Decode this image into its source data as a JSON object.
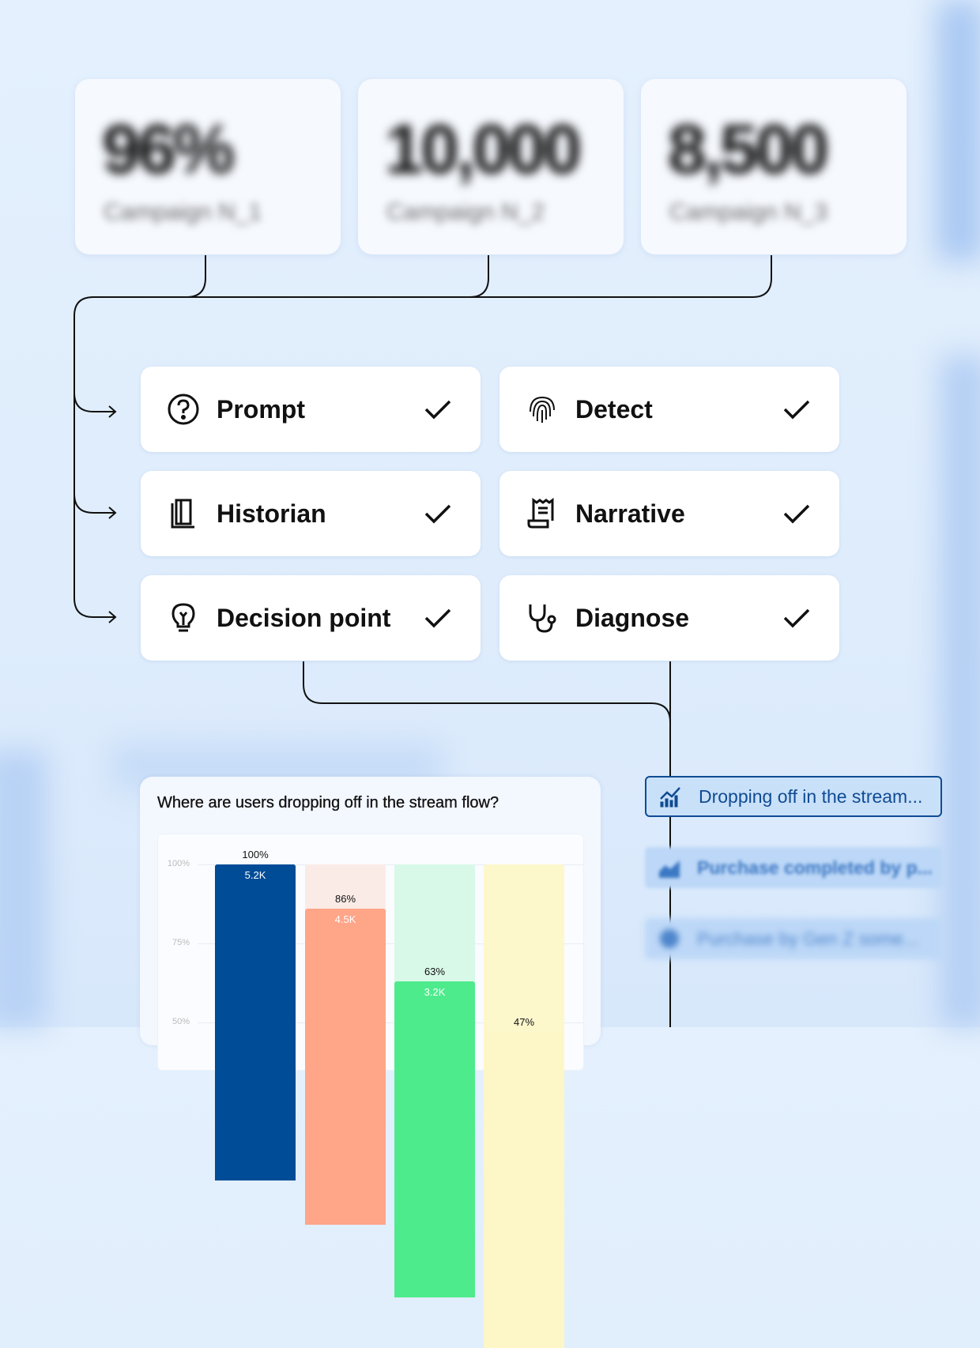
{
  "stats": [
    {
      "value": "96%",
      "label": "Campaign N_1"
    },
    {
      "value": "10,000",
      "label": "Campaign N_2"
    },
    {
      "value": "8,500",
      "label": "Campaign N_3"
    }
  ],
  "steps": [
    {
      "label": "Prompt",
      "icon": "question-circle-icon",
      "done": true
    },
    {
      "label": "Detect",
      "icon": "fingerprint-icon",
      "done": true
    },
    {
      "label": "Historian",
      "icon": "book-icon",
      "done": true
    },
    {
      "label": "Narrative",
      "icon": "receipt-icon",
      "done": true
    },
    {
      "label": "Decision point",
      "icon": "lightbulb-icon",
      "done": true
    },
    {
      "label": "Diagnose",
      "icon": "stethoscope-icon",
      "done": true
    }
  ],
  "chart_data": {
    "type": "bar",
    "title": "Where are users dropping off in the stream flow?",
    "yticks": [
      "100%",
      "75%",
      "50%"
    ],
    "ylim": [
      50,
      100
    ],
    "grid": true,
    "percent_labels": [
      "100%",
      "86%",
      "63%",
      "47%"
    ],
    "count_labels": [
      "5.2K",
      "4.5K",
      "3.2K",
      ""
    ],
    "values": [
      100,
      86,
      63,
      47
    ],
    "colors": [
      "#004c97",
      "#ffa588",
      "#4eeb8c",
      "#fdf7c8"
    ],
    "bg_colors": [
      "#004c97",
      "#fbebe6",
      "#d8f8e8",
      "#fdf7cc"
    ]
  },
  "insights": [
    {
      "label": "Dropping off in the stream...",
      "icon": "chart-trend-icon",
      "active": true
    },
    {
      "label": "Purchase completed by p...",
      "icon": "area-chart-icon",
      "active": false
    },
    {
      "label": "Purchase by Gen Z some...",
      "icon": "pie-icon",
      "active": false
    }
  ],
  "colors": {
    "accent": "#0f4c93",
    "line": "#111111"
  }
}
